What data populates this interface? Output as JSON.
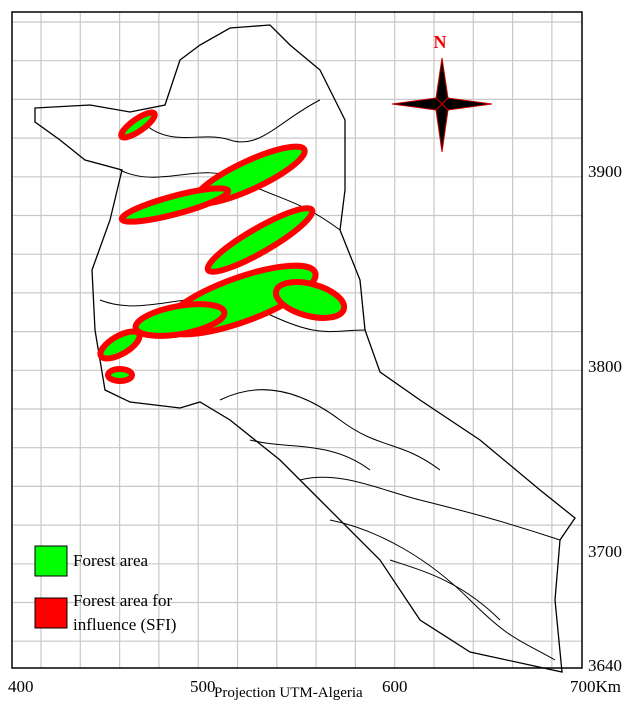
{
  "map": {
    "north_label": "N",
    "y_labels": [
      "3900",
      "3800",
      "3700",
      "3640"
    ],
    "x_labels": [
      "400",
      "500",
      "600",
      "700Km"
    ],
    "projection": "Projection UTM-Algeria",
    "legend": [
      {
        "lines": [
          "Forest area"
        ]
      },
      {
        "lines": [
          "Forest area for",
          "influence (SFI)"
        ]
      }
    ]
  }
}
